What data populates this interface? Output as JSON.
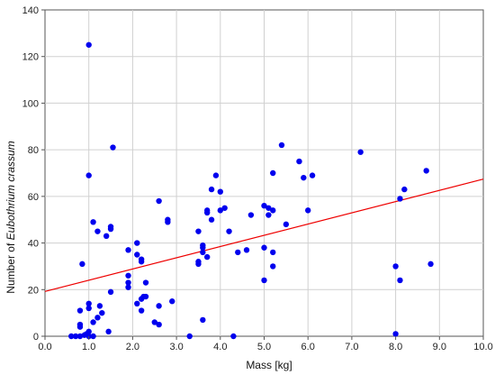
{
  "chart_data": {
    "type": "scatter",
    "xlabel": "Mass [kg]",
    "ylabel_prefix": "Number of ",
    "ylabel_italic": "Eubothrium crassum",
    "xlim": [
      0,
      10
    ],
    "ylim": [
      0,
      140
    ],
    "x_ticks": [
      "0.0",
      "1.0",
      "2.0",
      "3.0",
      "4.0",
      "5.0",
      "6.0",
      "7.0",
      "8.0",
      "9.0",
      "10.0"
    ],
    "y_ticks": [
      "0",
      "20",
      "40",
      "60",
      "80",
      "100",
      "120",
      "140"
    ],
    "grid": true,
    "point_color": "#0000ee",
    "fit_color": "#ee0000",
    "fit_line": {
      "x": [
        0,
        10
      ],
      "y": [
        19.2,
        67.4
      ]
    },
    "points": [
      [
        0.6,
        0
      ],
      [
        0.7,
        0
      ],
      [
        0.8,
        0
      ],
      [
        0.9,
        0.5
      ],
      [
        1.0,
        0
      ],
      [
        1.1,
        0
      ],
      [
        0.95,
        1
      ],
      [
        1.0,
        2
      ],
      [
        0.8,
        4
      ],
      [
        0.8,
        5
      ],
      [
        0.8,
        11
      ],
      [
        0.85,
        31
      ],
      [
        1.0,
        12
      ],
      [
        1.0,
        14
      ],
      [
        1.0,
        69
      ],
      [
        1.0,
        125
      ],
      [
        1.1,
        6
      ],
      [
        1.1,
        49
      ],
      [
        1.2,
        8
      ],
      [
        1.2,
        45
      ],
      [
        1.25,
        13
      ],
      [
        1.3,
        10
      ],
      [
        1.4,
        43
      ],
      [
        1.45,
        2
      ],
      [
        1.5,
        19
      ],
      [
        1.5,
        46
      ],
      [
        1.5,
        47
      ],
      [
        1.55,
        81
      ],
      [
        1.9,
        21
      ],
      [
        1.9,
        23
      ],
      [
        1.9,
        26
      ],
      [
        1.9,
        37
      ],
      [
        2.1,
        14
      ],
      [
        2.1,
        35
      ],
      [
        2.1,
        40
      ],
      [
        2.2,
        11
      ],
      [
        2.2,
        16
      ],
      [
        2.2,
        32
      ],
      [
        2.2,
        33
      ],
      [
        2.25,
        17
      ],
      [
        2.3,
        17
      ],
      [
        2.3,
        23
      ],
      [
        2.5,
        6
      ],
      [
        2.6,
        5
      ],
      [
        2.6,
        13
      ],
      [
        2.6,
        58
      ],
      [
        2.8,
        49
      ],
      [
        2.8,
        50
      ],
      [
        2.9,
        15
      ],
      [
        3.3,
        0
      ],
      [
        3.5,
        31
      ],
      [
        3.5,
        32
      ],
      [
        3.5,
        45
      ],
      [
        3.6,
        7
      ],
      [
        3.6,
        36
      ],
      [
        3.6,
        38
      ],
      [
        3.6,
        39
      ],
      [
        3.7,
        34
      ],
      [
        3.7,
        53
      ],
      [
        3.7,
        54
      ],
      [
        3.8,
        50
      ],
      [
        3.8,
        63
      ],
      [
        3.9,
        69
      ],
      [
        4.0,
        62
      ],
      [
        4.0,
        54
      ],
      [
        4.1,
        55
      ],
      [
        4.2,
        45
      ],
      [
        4.3,
        0
      ],
      [
        4.4,
        36
      ],
      [
        4.6,
        37
      ],
      [
        4.7,
        52
      ],
      [
        5.0,
        24
      ],
      [
        5.0,
        38
      ],
      [
        5.0,
        56
      ],
      [
        5.1,
        52
      ],
      [
        5.1,
        55
      ],
      [
        5.2,
        30
      ],
      [
        5.2,
        36
      ],
      [
        5.2,
        54
      ],
      [
        5.2,
        70
      ],
      [
        5.4,
        82
      ],
      [
        5.5,
        48
      ],
      [
        5.8,
        75
      ],
      [
        5.9,
        68
      ],
      [
        6.0,
        54
      ],
      [
        6.1,
        69
      ],
      [
        7.2,
        79
      ],
      [
        8.0,
        1
      ],
      [
        8.0,
        30
      ],
      [
        8.1,
        24
      ],
      [
        8.1,
        59
      ],
      [
        8.2,
        63
      ],
      [
        8.7,
        71
      ],
      [
        8.8,
        31
      ]
    ]
  }
}
